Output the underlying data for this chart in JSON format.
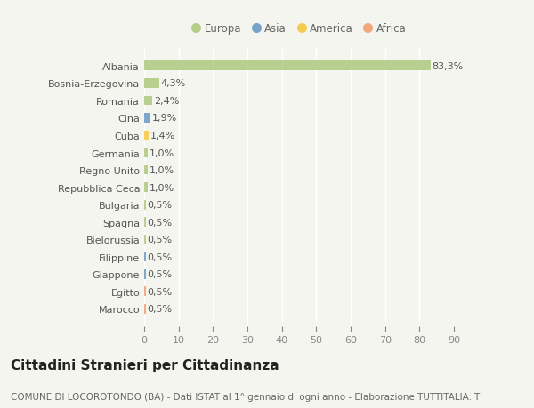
{
  "categories": [
    "Albania",
    "Bosnia-Erzegovina",
    "Romania",
    "Cina",
    "Cuba",
    "Germania",
    "Regno Unito",
    "Repubblica Ceca",
    "Bulgaria",
    "Spagna",
    "Bielorussia",
    "Filippine",
    "Giappone",
    "Egitto",
    "Marocco"
  ],
  "values": [
    83.3,
    4.3,
    2.4,
    1.9,
    1.4,
    1.0,
    1.0,
    1.0,
    0.5,
    0.5,
    0.5,
    0.5,
    0.5,
    0.5,
    0.5
  ],
  "labels": [
    "83,3%",
    "4,3%",
    "2,4%",
    "1,9%",
    "1,4%",
    "1,0%",
    "1,0%",
    "1,0%",
    "0,5%",
    "0,5%",
    "0,5%",
    "0,5%",
    "0,5%",
    "0,5%",
    "0,5%"
  ],
  "continents": [
    "Europa",
    "Europa",
    "Europa",
    "Asia",
    "America",
    "Europa",
    "Europa",
    "Europa",
    "Europa",
    "Europa",
    "Europa",
    "Asia",
    "Asia",
    "Africa",
    "Africa"
  ],
  "continent_colors": {
    "Europa": "#afc97e",
    "Asia": "#6b9ac4",
    "America": "#f5c842",
    "Africa": "#f0a070"
  },
  "legend_items": [
    "Europa",
    "Asia",
    "America",
    "Africa"
  ],
  "legend_colors": [
    "#afc97e",
    "#6b9ac4",
    "#f5c842",
    "#f0a070"
  ],
  "xlim": [
    0,
    90
  ],
  "xticks": [
    0,
    10,
    20,
    30,
    40,
    50,
    60,
    70,
    80,
    90
  ],
  "background_color": "#f5f5f0",
  "plot_bg_color": "#f5f5f0",
  "grid_color": "#ffffff",
  "title": "Cittadini Stranieri per Cittadinanza",
  "subtitle": "COMUNE DI LOCOROTONDO (BA) - Dati ISTAT al 1° gennaio di ogni anno - Elaborazione TUTTITALIA.IT",
  "title_fontsize": 11,
  "subtitle_fontsize": 7.5,
  "label_fontsize": 8,
  "tick_fontsize": 8,
  "legend_fontsize": 8.5,
  "bar_alpha": 0.85,
  "bar_height": 0.55
}
